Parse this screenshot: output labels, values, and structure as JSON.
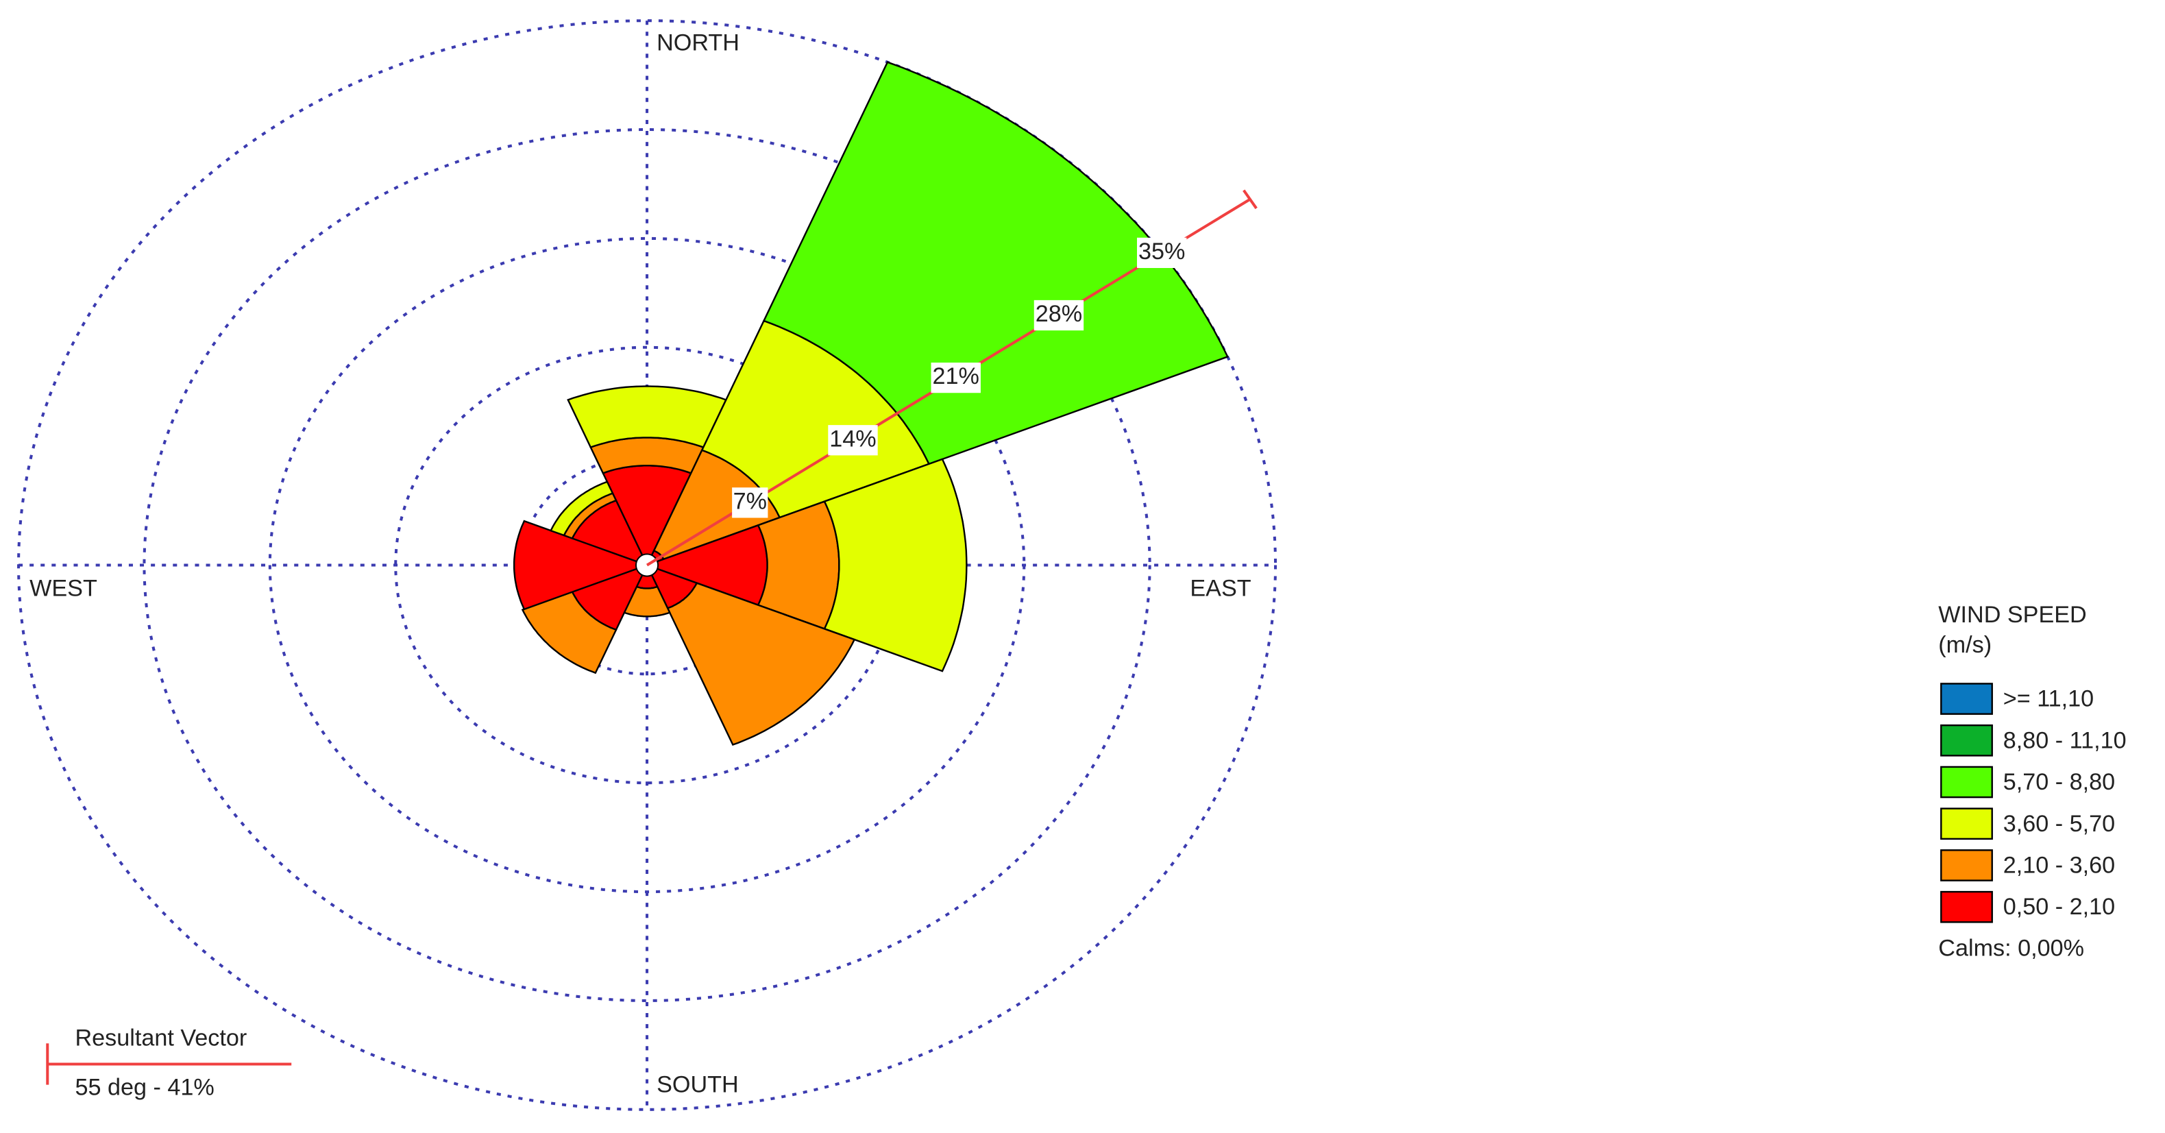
{
  "chart_data": {
    "type": "windrose",
    "categories": [
      "NORTH",
      null,
      "EAST",
      null,
      "SOUTH",
      null,
      "WEST",
      null
    ],
    "directions": [
      0,
      45,
      90,
      135,
      180,
      225,
      270,
      315
    ],
    "rlim": [
      0,
      35
    ],
    "rticks": [
      {
        "value": 7,
        "label": "7%"
      },
      {
        "value": 14,
        "label": "14%"
      },
      {
        "value": 21,
        "label": "21%"
      },
      {
        "value": 28,
        "label": "28%"
      },
      {
        "value": 35,
        "label": "35%"
      }
    ],
    "grid": true,
    "legend_title": [
      "WIND SPEED",
      "(m/s)"
    ],
    "series": [
      {
        "name": ">= 11,10",
        "color": "#0a78c0",
        "values": [
          0,
          0,
          0,
          0,
          0,
          0,
          0,
          0
        ]
      },
      {
        "name": "8,80 - 11,10",
        "color": "#0cb02a",
        "values": [
          0,
          0,
          0,
          0,
          0,
          0,
          0,
          0
        ]
      },
      {
        "name": "5,70 - 8,80",
        "color": "#55ff00",
        "values": [
          0,
          18,
          0,
          0,
          0,
          0,
          0,
          0
        ]
      },
      {
        "name": "3,60 - 5,70",
        "color": "#e2ff00",
        "values": [
          3.3,
          9,
          7.1,
          0,
          0,
          0,
          0,
          0.8
        ]
      },
      {
        "name": "2,10 - 3,60",
        "color": "#ff8c00",
        "values": [
          1.8,
          7,
          4,
          9.5,
          1.8,
          3,
          0,
          0.5
        ]
      },
      {
        "name": "0,50 - 2,10",
        "color": "#ff0000",
        "values": [
          6.4,
          1,
          6.7,
          3,
          1.5,
          4.5,
          7.4,
          4.5
        ]
      }
    ],
    "calms": "Calms: 0,00%",
    "resultant": {
      "title": "Resultant Vector",
      "direction": 55,
      "magnitude": 41,
      "label": "55 deg - 41%"
    }
  }
}
